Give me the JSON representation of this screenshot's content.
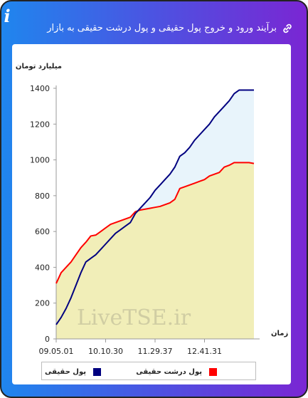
{
  "header": {
    "title": "برآیند ورود و خروج پول حقیقی و پول درشت حقیقی به بازار",
    "link_icon": "link-icon",
    "info_icon_label": "i"
  },
  "watermark": "LiveTSE.ir",
  "legend": {
    "items": [
      {
        "label": "پول درشت حقیقی",
        "color": "#ff0000"
      },
      {
        "label": "پول حقیقی",
        "color": "#000080"
      }
    ]
  },
  "chart_data": {
    "type": "area",
    "xlabel": "زمان",
    "ylabel": "میلیارد تومان",
    "x_ticks": [
      "09.05.01",
      "10.10.30",
      "11.29.37",
      "12.41.31"
    ],
    "x": [
      0,
      1,
      2,
      3,
      4,
      5,
      6,
      7,
      8,
      9,
      10,
      11,
      12,
      13,
      14,
      15,
      16,
      17,
      18,
      19,
      20,
      21,
      22,
      23,
      24,
      25,
      26,
      27,
      28,
      29,
      30,
      31,
      32,
      33,
      34,
      35,
      36,
      37,
      38,
      39,
      40
    ],
    "ylim": [
      0,
      1400
    ],
    "yticks": [
      0,
      200,
      400,
      600,
      800,
      1000,
      1200,
      1400
    ],
    "grid": false,
    "legend": "bottom",
    "series": [
      {
        "name": "پول حقیقی",
        "color": "#000080",
        "fill": "#e8f4fb",
        "values": [
          80,
          120,
          170,
          230,
          300,
          370,
          430,
          450,
          470,
          500,
          530,
          560,
          590,
          610,
          630,
          650,
          700,
          730,
          760,
          790,
          830,
          860,
          890,
          920,
          960,
          1020,
          1040,
          1070,
          1110,
          1140,
          1170,
          1200,
          1240,
          1270,
          1300,
          1330,
          1370,
          1390,
          1390,
          1390,
          1390
        ]
      },
      {
        "name": "پول درشت حقیقی",
        "color": "#ff0000",
        "fill": "#f1eeb8",
        "values": [
          310,
          370,
          400,
          430,
          470,
          510,
          540,
          575,
          580,
          600,
          620,
          640,
          650,
          660,
          670,
          680,
          710,
          720,
          725,
          730,
          735,
          740,
          750,
          760,
          780,
          840,
          850,
          860,
          870,
          880,
          890,
          910,
          920,
          930,
          960,
          970,
          985,
          985,
          985,
          985,
          980
        ]
      }
    ]
  }
}
